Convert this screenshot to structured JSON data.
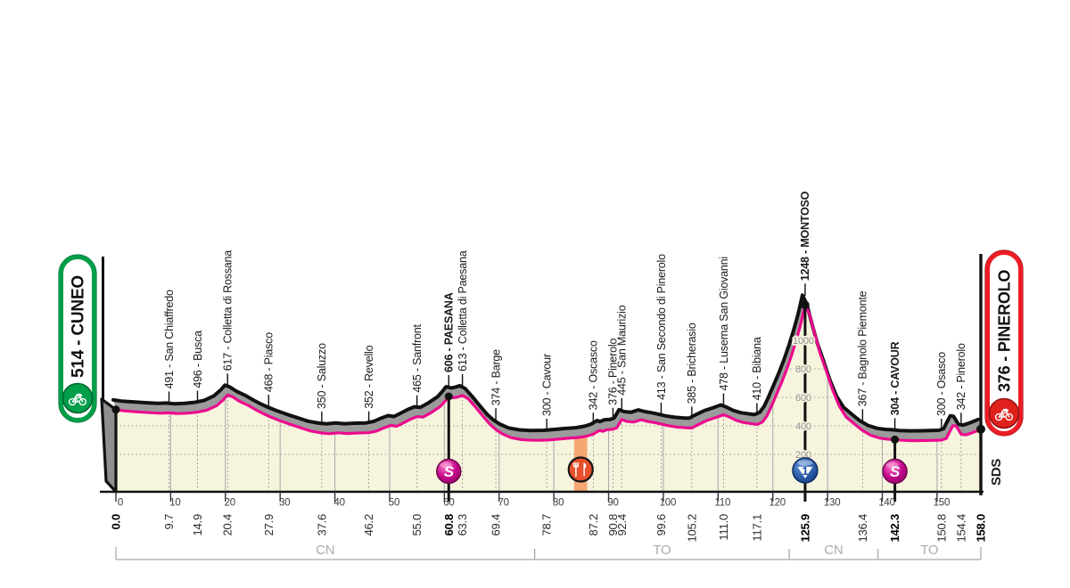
{
  "chart_data": {
    "type": "area",
    "start": {
      "badge_label": "514 - CUNEO",
      "elevation_m": 514,
      "km": 0
    },
    "finish": {
      "badge_label": "376 - PINEROLO",
      "elevation_m": 376,
      "km": 158
    },
    "signature": "SDS",
    "x_axis": {
      "tick_start": 0,
      "tick_end": 150,
      "tick_step": 10,
      "start_km_label": "0.0",
      "end_km_label": "158.0"
    },
    "y_axis": {
      "gridline_labels_m": [
        200,
        400,
        600,
        800,
        1000
      ]
    },
    "waypoints": [
      {
        "km": 9.7,
        "elevation_m": 491,
        "label": "491 - San Chiaffredo",
        "bold": false
      },
      {
        "km": 14.9,
        "elevation_m": 496,
        "label": "496 - Busca",
        "bold": false
      },
      {
        "km": 20.4,
        "elevation_m": 617,
        "label": "617 - Colletta di Rossana",
        "bold": false
      },
      {
        "km": 27.9,
        "elevation_m": 468,
        "label": "468 - Piasco",
        "bold": false
      },
      {
        "km": 37.6,
        "elevation_m": 350,
        "label": "350 - Saluzzo",
        "bold": false
      },
      {
        "km": 46.2,
        "elevation_m": 352,
        "label": "352 - Revello",
        "bold": false
      },
      {
        "km": 55.0,
        "elevation_m": 465,
        "label": "465 - Sanfront",
        "bold": false
      },
      {
        "km": 60.8,
        "elevation_m": 606,
        "label": "606 - PAESANA",
        "bold": true
      },
      {
        "km": 63.3,
        "elevation_m": 613,
        "label": "613 - Colletta di Paesana",
        "bold": false
      },
      {
        "km": 69.4,
        "elevation_m": 374,
        "label": "374 - Barge",
        "bold": false
      },
      {
        "km": 78.7,
        "elevation_m": 300,
        "label": "300 - Cavour",
        "bold": false
      },
      {
        "km": 87.2,
        "elevation_m": 342,
        "label": "342 - Oscasco",
        "bold": false
      },
      {
        "km": 90.8,
        "elevation_m": 376,
        "label": "376 - Pinerolo",
        "bold": false
      },
      {
        "km": 92.4,
        "elevation_m": 445,
        "label": "445 - San Maurizio",
        "bold": false
      },
      {
        "km": 99.6,
        "elevation_m": 413,
        "label": "413 - San Secondo di Pinerolo",
        "bold": false
      },
      {
        "km": 105.2,
        "elevation_m": 385,
        "label": "385 - Bricherasio",
        "bold": false
      },
      {
        "km": 111.0,
        "elevation_m": 478,
        "label": "478 - Luserna San Giovanni",
        "bold": false
      },
      {
        "km": 117.1,
        "elevation_m": 410,
        "label": "410 - Bibiana",
        "bold": false
      },
      {
        "km": 125.9,
        "elevation_m": 1248,
        "label": "1248 - MONTOSO",
        "bold": true
      },
      {
        "km": 136.4,
        "elevation_m": 367,
        "label": "367 - Bagnolo Piemonte",
        "bold": false
      },
      {
        "km": 142.3,
        "elevation_m": 304,
        "label": "304 - CAVOUR",
        "bold": true
      },
      {
        "km": 150.8,
        "elevation_m": 300,
        "label": "300 - Osasco",
        "bold": false
      },
      {
        "km": 154.4,
        "elevation_m": 342,
        "label": "342 - Pinerolo",
        "bold": false
      }
    ],
    "markers": [
      {
        "kind": "sprint",
        "km": 60.8
      },
      {
        "kind": "feed_zone",
        "km": 84.9,
        "band_km": [
          83.7,
          86.1
        ]
      },
      {
        "kind": "kom",
        "km": 125.9,
        "category": "1"
      },
      {
        "kind": "sprint",
        "km": 142.3
      }
    ],
    "sectors": {
      "boundaries_km": [
        0,
        76.5,
        123,
        139.2,
        158
      ],
      "labels": [
        "CN",
        "TO",
        "CN",
        "TO"
      ]
    },
    "profile_points": [
      [
        0,
        514
      ],
      [
        1.5,
        505
      ],
      [
        4,
        498
      ],
      [
        6.5,
        492
      ],
      [
        8.2,
        489
      ],
      [
        9.7,
        491
      ],
      [
        11.2,
        486
      ],
      [
        13,
        489
      ],
      [
        14.9,
        496
      ],
      [
        16.6,
        510
      ],
      [
        18.4,
        542
      ],
      [
        19.6,
        582
      ],
      [
        20.4,
        617
      ],
      [
        21.3,
        604
      ],
      [
        22.6,
        572
      ],
      [
        24.2,
        543
      ],
      [
        25.6,
        512
      ],
      [
        26.8,
        488
      ],
      [
        27.9,
        468
      ],
      [
        29.6,
        441
      ],
      [
        31.6,
        414
      ],
      [
        33.6,
        389
      ],
      [
        35.6,
        364
      ],
      [
        37.6,
        350
      ],
      [
        39,
        345
      ],
      [
        40.6,
        351
      ],
      [
        42.2,
        346
      ],
      [
        44.2,
        350
      ],
      [
        46.2,
        352
      ],
      [
        47.6,
        363
      ],
      [
        49,
        386
      ],
      [
        50.2,
        403
      ],
      [
        51.3,
        397
      ],
      [
        52.6,
        422
      ],
      [
        53.8,
        446
      ],
      [
        55,
        465
      ],
      [
        56.1,
        461
      ],
      [
        57.6,
        493
      ],
      [
        59.2,
        534
      ],
      [
        60.1,
        572
      ],
      [
        60.8,
        606
      ],
      [
        61.7,
        597
      ],
      [
        62.6,
        604
      ],
      [
        63.3,
        613
      ],
      [
        64.3,
        592
      ],
      [
        65.6,
        536
      ],
      [
        67.1,
        466
      ],
      [
        68.3,
        412
      ],
      [
        69.4,
        374
      ],
      [
        70.6,
        344
      ],
      [
        72.2,
        317
      ],
      [
        74.2,
        303
      ],
      [
        76.2,
        299
      ],
      [
        78.7,
        300
      ],
      [
        80.6,
        306
      ],
      [
        82.6,
        313
      ],
      [
        84.6,
        319
      ],
      [
        86.1,
        329
      ],
      [
        87.2,
        342
      ],
      [
        88.4,
        369
      ],
      [
        88.9,
        361
      ],
      [
        89.7,
        373
      ],
      [
        90.8,
        376
      ],
      [
        91.5,
        386
      ],
      [
        92.4,
        445
      ],
      [
        93.3,
        431
      ],
      [
        94.6,
        427
      ],
      [
        95.9,
        443
      ],
      [
        97.1,
        431
      ],
      [
        98.4,
        423
      ],
      [
        99.6,
        413
      ],
      [
        100.9,
        401
      ],
      [
        102.6,
        391
      ],
      [
        104.1,
        387
      ],
      [
        105.2,
        385
      ],
      [
        106.6,
        413
      ],
      [
        108.1,
        440
      ],
      [
        109.6,
        459
      ],
      [
        111,
        478
      ],
      [
        112.1,
        461
      ],
      [
        113.3,
        439
      ],
      [
        114.6,
        424
      ],
      [
        115.9,
        417
      ],
      [
        117.1,
        410
      ],
      [
        118.1,
        426
      ],
      [
        118.9,
        468
      ],
      [
        119.7,
        534
      ],
      [
        120.6,
        614
      ],
      [
        121.6,
        703
      ],
      [
        122.5,
        793
      ],
      [
        123.4,
        893
      ],
      [
        124.3,
        1003
      ],
      [
        125.1,
        1113
      ],
      [
        125.9,
        1248
      ],
      [
        126.7,
        1185
      ],
      [
        127.6,
        1052
      ],
      [
        128.6,
        913
      ],
      [
        129.7,
        792
      ],
      [
        130.9,
        655
      ],
      [
        132.1,
        541
      ],
      [
        133.4,
        462
      ],
      [
        134.9,
        413
      ],
      [
        136.4,
        367
      ],
      [
        137.9,
        334
      ],
      [
        139.6,
        314
      ],
      [
        141.1,
        306
      ],
      [
        142.3,
        304
      ],
      [
        143.6,
        299
      ],
      [
        145.6,
        296
      ],
      [
        147.6,
        297
      ],
      [
        149.2,
        298
      ],
      [
        150.8,
        300
      ],
      [
        151.7,
        312
      ],
      [
        152.3,
        358
      ],
      [
        152.9,
        402
      ],
      [
        153.5,
        398
      ],
      [
        154.4,
        342
      ],
      [
        155.2,
        336
      ],
      [
        156.2,
        348
      ],
      [
        157.1,
        362
      ],
      [
        158,
        376
      ]
    ],
    "colors": {
      "route_pink": "#EC0A8E",
      "relief_gray": "#9B9B9B",
      "area_cream": "#F7F4DE",
      "feed_band_orange": "#F5A873",
      "start_green": "#009E49",
      "finish_red": "#ED1C24",
      "kom_blue": "#2C5AA8",
      "sprint_pink": "#C4098C",
      "bracket_gray": "#ABABAB"
    }
  }
}
